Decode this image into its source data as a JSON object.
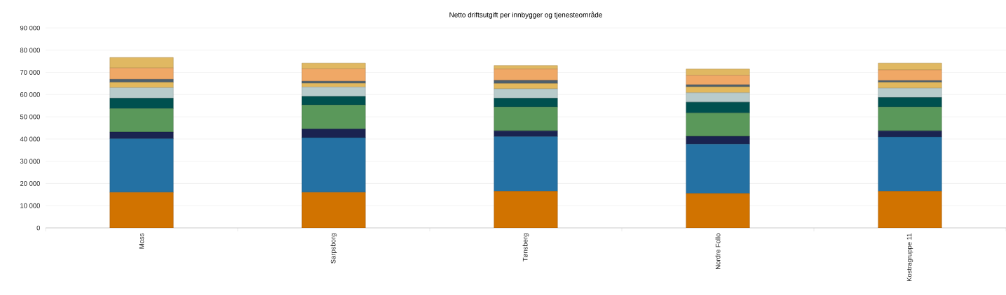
{
  "chart_data": {
    "type": "bar",
    "title": "Netto driftsutgift per innbygger og tjenesteområde",
    "stacked": true,
    "grid": "y",
    "categories": [
      "Moss",
      "Sarpsborg",
      "Tønsberg",
      "Nordre Follo",
      "Kostragruppe 11"
    ],
    "ylim": [
      0,
      90000
    ],
    "yticks": [
      {
        "value": 0,
        "label": "0"
      },
      {
        "value": 10000,
        "label": "10 000"
      },
      {
        "value": 20000,
        "label": "20 000"
      },
      {
        "value": 30000,
        "label": "30 000"
      },
      {
        "value": 40000,
        "label": "40 000"
      },
      {
        "value": 50000,
        "label": "50 000"
      },
      {
        "value": 60000,
        "label": "60 000"
      },
      {
        "value": 70000,
        "label": "70 000"
      },
      {
        "value": 80000,
        "label": "80 000"
      },
      {
        "value": 90000,
        "label": "90 000"
      }
    ],
    "series": [
      {
        "color": "#d17300",
        "values": [
          16000,
          16000,
          16500,
          15500,
          16500
        ]
      },
      {
        "color": "#2471a3",
        "values": [
          24100,
          24600,
          24600,
          22200,
          24400
        ]
      },
      {
        "color": "#1a2350",
        "values": [
          3000,
          3900,
          2600,
          3500,
          2800
        ]
      },
      {
        "color": "#5a985a",
        "values": [
          10600,
          10800,
          10700,
          10500,
          10700
        ]
      },
      {
        "color": "#00504f",
        "values": [
          4700,
          3900,
          4000,
          4900,
          4300
        ]
      },
      {
        "color": "#b8cbcb",
        "values": [
          4700,
          4200,
          4200,
          4200,
          4200
        ]
      },
      {
        "color": "#e2b85c",
        "values": [
          2400,
          1700,
          2400,
          2700,
          2600
        ]
      },
      {
        "color": "#4d5f6b",
        "values": [
          1400,
          900,
          1400,
          900,
          800
        ]
      },
      {
        "color": "#f0a866",
        "values": [
          5100,
          5600,
          5100,
          4300,
          4800
        ]
      },
      {
        "color": "#e0b862",
        "values": [
          4700,
          2600,
          1600,
          2800,
          3100
        ]
      }
    ]
  }
}
